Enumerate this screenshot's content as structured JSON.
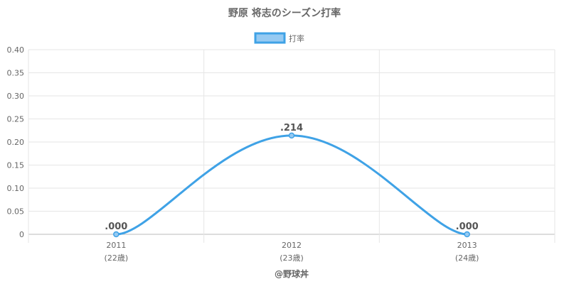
{
  "chart_data": {
    "type": "line",
    "title": "野原 将志のシーズン打率",
    "categories": [
      "2011",
      "2012",
      "2013"
    ],
    "category_sublabels": [
      "(22歳)",
      "(23歳)",
      "(24歳)"
    ],
    "series": [
      {
        "name": "打率",
        "values": [
          0.0,
          0.214,
          0.0
        ],
        "labels": [
          ".000",
          ".214",
          ".000"
        ],
        "color": "#3fa2e6",
        "fill_color": "#96caf2"
      }
    ],
    "ylim": [
      0,
      0.4
    ],
    "yticks": [
      0,
      0.05,
      0.1,
      0.15,
      0.2,
      0.25,
      0.3,
      0.35,
      0.4
    ],
    "ytick_labels": [
      "0",
      "0.05",
      "0.10",
      "0.15",
      "0.20",
      "0.25",
      "0.30",
      "0.35",
      "0.40"
    ],
    "legend_position": "top-center",
    "grid": true,
    "xlabel": "",
    "ylabel": ""
  },
  "footer": {
    "credit": "@野球丼"
  }
}
